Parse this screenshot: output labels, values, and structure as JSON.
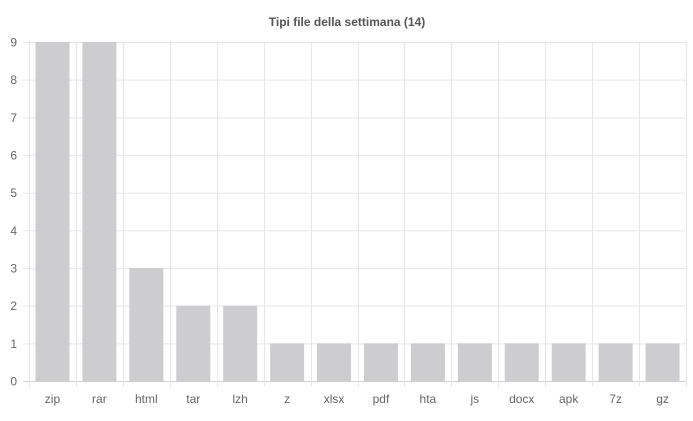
{
  "chart_data": {
    "type": "bar",
    "title": "Tipi file della settimana (14)",
    "xlabel": "",
    "ylabel": "",
    "categories": [
      "zip",
      "rar",
      "html",
      "tar",
      "lzh",
      "z",
      "xlsx",
      "pdf",
      "hta",
      "js",
      "docx",
      "apk",
      "7z",
      "gz"
    ],
    "values": [
      9,
      9,
      3,
      2,
      2,
      1,
      1,
      1,
      1,
      1,
      1,
      1,
      1,
      1
    ],
    "ylim": [
      0,
      9
    ],
    "yticks": [
      "0",
      "1",
      "2",
      "3",
      "4",
      "5",
      "6",
      "7",
      "8",
      "9"
    ],
    "grid": true,
    "legend": "none",
    "bar_color": "#cdcdcf"
  }
}
